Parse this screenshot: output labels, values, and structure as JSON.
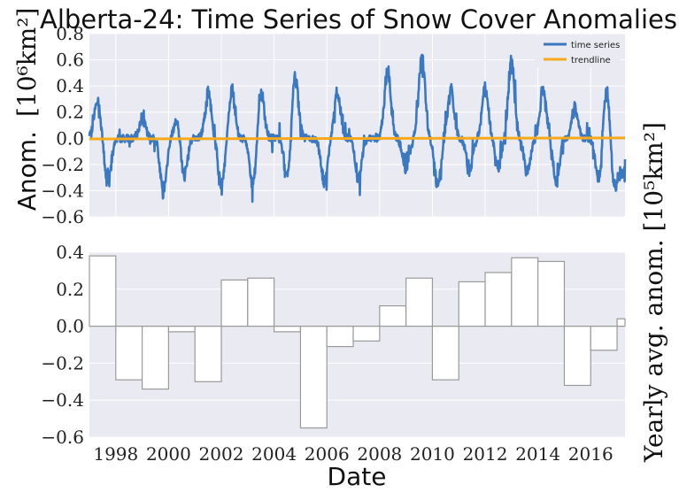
{
  "chart_data": [
    {
      "type": "line",
      "title": "Alberta-24: Time Series of Snow Cover Anomalies",
      "ylabel_text": "Anom.",
      "ylabel_unit": "[10⁶km²]",
      "ylim": [
        -0.6,
        0.8
      ],
      "yticks": [
        "0.8",
        "0.6",
        "0.4",
        "0.2",
        "0.0",
        "−0.2",
        "−0.4",
        "−0.6"
      ],
      "yticks_values": [
        0.8,
        0.6,
        0.4,
        0.2,
        0.0,
        -0.2,
        -0.4,
        -0.6
      ],
      "xlim": [
        1997.0,
        2017.3
      ],
      "grid": true,
      "legend_placement": "top-right",
      "series": [
        {
          "name": "time series",
          "color": "#3a78c2",
          "note_peaks_approx": [
            {
              "x": 1997.3,
              "y": 0.32
            },
            {
              "x": 1997.7,
              "y": -0.4
            },
            {
              "x": 1999.0,
              "y": 0.16
            },
            {
              "x": 1999.8,
              "y": -0.46
            },
            {
              "x": 2000.3,
              "y": 0.15
            },
            {
              "x": 2000.6,
              "y": -0.32
            },
            {
              "x": 2001.5,
              "y": 0.38
            },
            {
              "x": 2002.0,
              "y": -0.43
            },
            {
              "x": 2002.4,
              "y": 0.39
            },
            {
              "x": 2003.2,
              "y": -0.42
            },
            {
              "x": 2003.5,
              "y": 0.42
            },
            {
              "x": 2004.5,
              "y": -0.35
            },
            {
              "x": 2004.8,
              "y": 0.55
            },
            {
              "x": 2005.9,
              "y": -0.39
            },
            {
              "x": 2006.4,
              "y": 0.4
            },
            {
              "x": 2007.2,
              "y": -0.35
            },
            {
              "x": 2008.3,
              "y": 0.6
            },
            {
              "x": 2009.0,
              "y": -0.28
            },
            {
              "x": 2009.6,
              "y": 0.67
            },
            {
              "x": 2010.2,
              "y": -0.43
            },
            {
              "x": 2010.7,
              "y": 0.4
            },
            {
              "x": 2011.4,
              "y": -0.28
            },
            {
              "x": 2012.0,
              "y": 0.45
            },
            {
              "x": 2012.5,
              "y": -0.25
            },
            {
              "x": 2013.0,
              "y": 0.67
            },
            {
              "x": 2013.6,
              "y": -0.3
            },
            {
              "x": 2014.2,
              "y": 0.43
            },
            {
              "x": 2014.7,
              "y": -0.38
            },
            {
              "x": 2015.4,
              "y": 0.27
            },
            {
              "x": 2016.3,
              "y": -0.38
            },
            {
              "x": 2016.6,
              "y": 0.44
            },
            {
              "x": 2016.9,
              "y": -0.42
            },
            {
              "x": 2017.2,
              "y": -0.3
            }
          ]
        },
        {
          "name": "trendline",
          "color": "#f6a91b",
          "x": [
            1997.0,
            2017.3
          ],
          "y": [
            -0.005,
            0.003
          ]
        }
      ]
    },
    {
      "type": "bar",
      "ylabel": "Yearly avg. anom. [10⁵km²]",
      "xlabel": "Date",
      "ylim": [
        -0.6,
        0.4
      ],
      "yticks": [
        "0.4",
        "0.2",
        "0.0",
        "−0.2",
        "−0.4",
        "−0.6"
      ],
      "yticks_values": [
        0.4,
        0.2,
        0.0,
        -0.2,
        -0.4,
        -0.6
      ],
      "xlim": [
        1997.0,
        2017.3
      ],
      "xticks": [
        "1998",
        "2000",
        "2002",
        "2004",
        "2006",
        "2008",
        "2010",
        "2012",
        "2014",
        "2016"
      ],
      "xticks_values": [
        1998,
        2000,
        2002,
        2004,
        2006,
        2008,
        2010,
        2012,
        2014,
        2016
      ],
      "grid": true,
      "categories": [
        "1997",
        "1998",
        "1999",
        "2000",
        "2001",
        "2002",
        "2003",
        "2004",
        "2005",
        "2006",
        "2007",
        "2008",
        "2009",
        "2010",
        "2011",
        "2012",
        "2013",
        "2014",
        "2015",
        "2016",
        "2017"
      ],
      "values": [
        0.38,
        -0.29,
        -0.34,
        -0.03,
        -0.3,
        0.25,
        0.26,
        -0.03,
        -0.55,
        -0.11,
        -0.08,
        0.11,
        0.26,
        -0.29,
        0.24,
        0.29,
        0.37,
        0.35,
        -0.32,
        -0.13,
        0.04
      ]
    }
  ]
}
